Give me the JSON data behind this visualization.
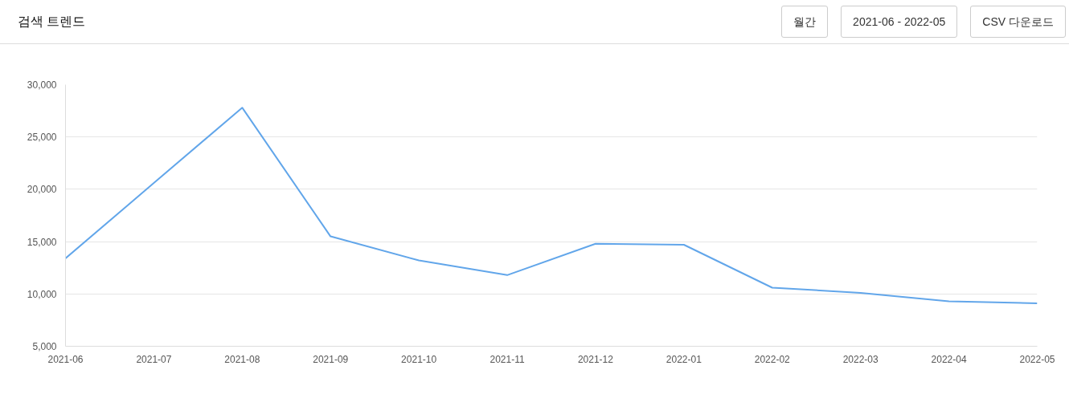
{
  "chart_data": {
    "type": "line",
    "title": "검색 트렌드",
    "annotations": [
      "월간",
      "2021-06 - 2022-05",
      "CSV 다운로드"
    ],
    "categories": [
      "2021-06",
      "2021-07",
      "2021-08",
      "2021-09",
      "2021-10",
      "2021-11",
      "2021-12",
      "2022-01",
      "2022-02",
      "2022-03",
      "2022-04",
      "2022-05"
    ],
    "series": [
      {
        "color": "#62a6ea",
        "values": [
          13400,
          20600,
          27800,
          15500,
          13200,
          11800,
          14800,
          14700,
          10600,
          10100,
          9300,
          9100
        ]
      }
    ],
    "ylim": [
      5000,
      30000
    ],
    "yticks": [
      {
        "value": 5000,
        "label": "5,000"
      },
      {
        "value": 10000,
        "label": "10,000"
      },
      {
        "value": 15000,
        "label": "15,000"
      },
      {
        "value": 20000,
        "label": "20,000"
      },
      {
        "value": 25000,
        "label": "25,000"
      },
      {
        "value": 30000,
        "label": "30,000"
      }
    ],
    "grid": "y",
    "marker": "none",
    "line_style": "solid"
  }
}
